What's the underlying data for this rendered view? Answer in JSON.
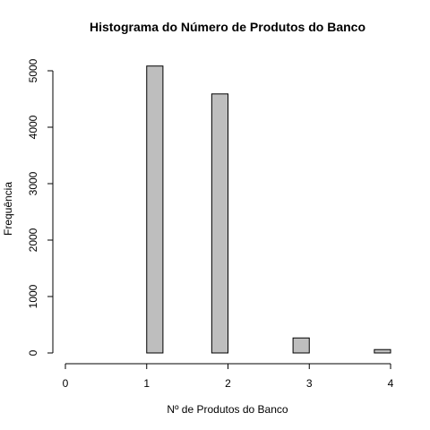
{
  "chart_data": {
    "type": "bar",
    "title": "Histograma do Número de Produtos do Banco",
    "xlabel": "Nº de Produtos do Banco",
    "ylabel": "Frequência",
    "bar_color": "#bebebe",
    "edge_color": "#000000",
    "xlim": [
      0,
      4
    ],
    "ylim": [
      0,
      5100
    ],
    "x_ticks": [
      0,
      1,
      2,
      3,
      4
    ],
    "y_ticks": [
      0,
      1000,
      2000,
      3000,
      4000,
      5000
    ],
    "bins": [
      {
        "x0": 1.0,
        "x1": 1.2,
        "count": 5084
      },
      {
        "x0": 1.2,
        "x1": 1.4,
        "count": 0
      },
      {
        "x0": 1.4,
        "x1": 1.6,
        "count": 0
      },
      {
        "x0": 1.6,
        "x1": 1.8,
        "count": 0
      },
      {
        "x0": 1.8,
        "x1": 2.0,
        "count": 4590
      },
      {
        "x0": 2.0,
        "x1": 2.2,
        "count": 0
      },
      {
        "x0": 2.2,
        "x1": 2.4,
        "count": 0
      },
      {
        "x0": 2.4,
        "x1": 2.6,
        "count": 0
      },
      {
        "x0": 2.6,
        "x1": 2.8,
        "count": 0
      },
      {
        "x0": 2.8,
        "x1": 3.0,
        "count": 266
      },
      {
        "x0": 3.0,
        "x1": 3.2,
        "count": 0
      },
      {
        "x0": 3.2,
        "x1": 3.4,
        "count": 0
      },
      {
        "x0": 3.4,
        "x1": 3.6,
        "count": 0
      },
      {
        "x0": 3.6,
        "x1": 3.8,
        "count": 0
      },
      {
        "x0": 3.8,
        "x1": 4.0,
        "count": 60
      }
    ],
    "grid": false,
    "legend": "none"
  }
}
